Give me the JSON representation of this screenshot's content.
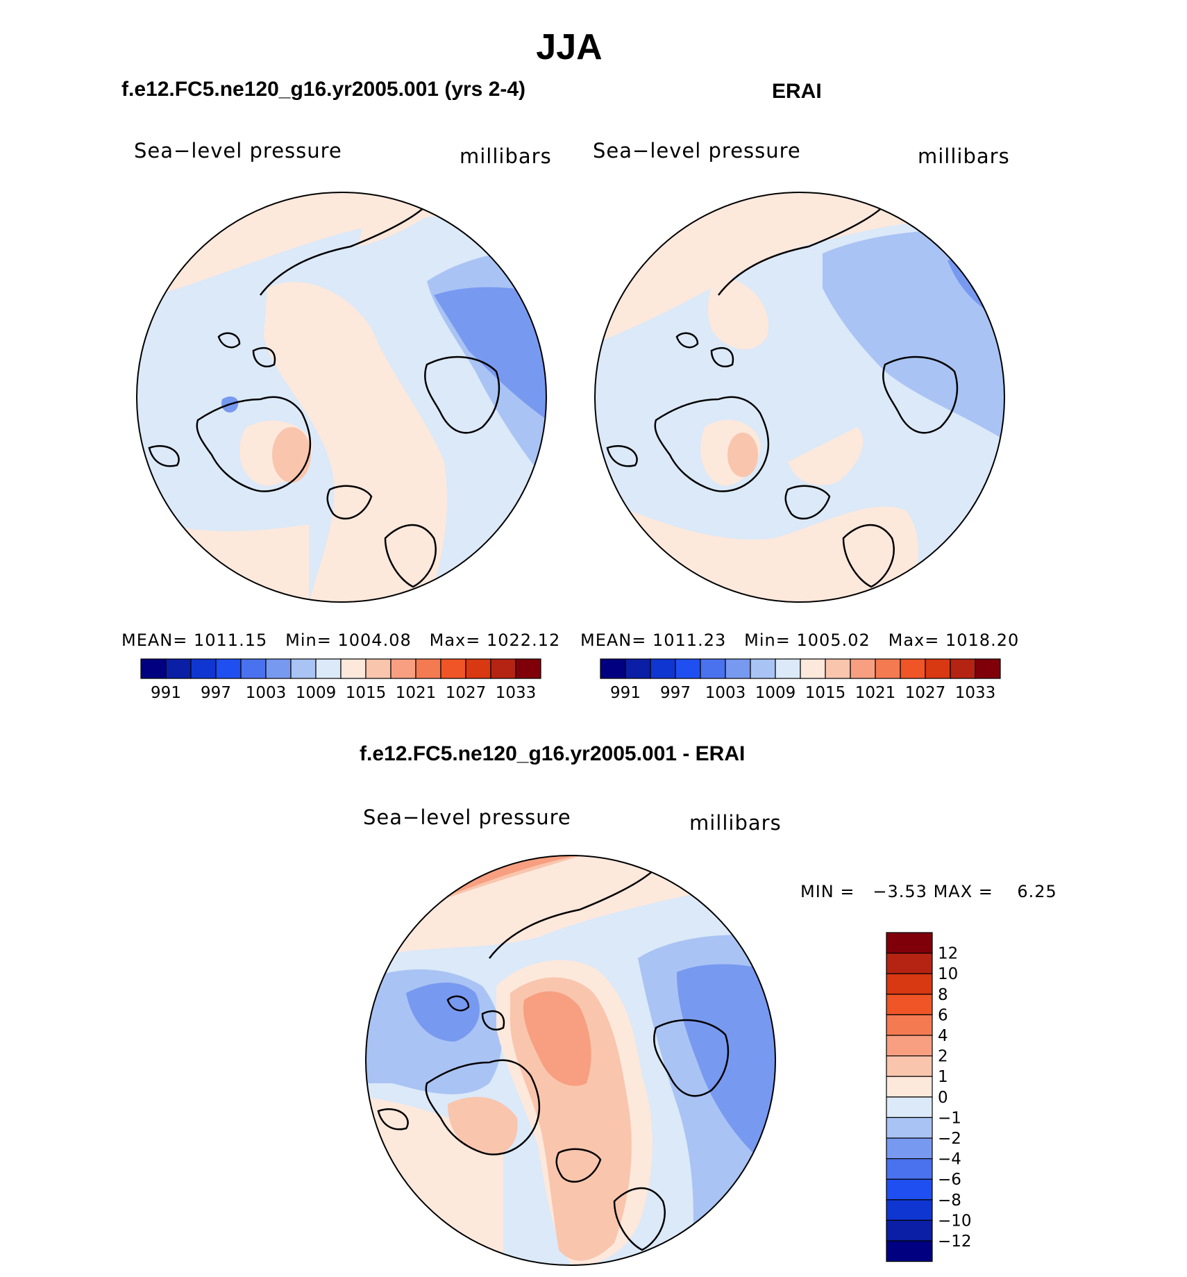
{
  "figure": {
    "title": "JJA",
    "panel1": {
      "case": "f.e12.FC5.ne120_g16.yr2005.001 (yrs 2-4)",
      "variable": "Sea−level pressure",
      "units": "millibars",
      "mean_label": "MEAN=",
      "mean_value": "1011.15",
      "min_label": "Min=",
      "min_value": "1004.08",
      "max_label": "Max=",
      "max_value": "1022.12"
    },
    "panel2": {
      "case": "ERAI",
      "variable": "Sea−level pressure",
      "units": "millibars",
      "mean_label": "MEAN=",
      "mean_value": "1011.23",
      "min_label": "Min=",
      "min_value": "1005.02",
      "max_label": "Max=",
      "max_value": "1018.20"
    },
    "panel3": {
      "case": "f.e12.FC5.ne120_g16.yr2005.001 - ERAI",
      "variable": "Sea−level pressure",
      "units": "millibars",
      "min_label": "MIN =",
      "min_value": "−3.53",
      "max_label": "MAX =",
      "max_value": "6.25"
    }
  },
  "colors": {
    "abs_colorbar": [
      "#000080",
      "#0a1fa6",
      "#1036d2",
      "#1f4ff0",
      "#4a72ee",
      "#7899f0",
      "#a9c3f4",
      "#dbe9f8",
      "#fde8dc",
      "#f9c5ad",
      "#f79f80",
      "#f47a52",
      "#ef5526",
      "#d83812",
      "#b52413",
      "#80000a"
    ],
    "diff_colorbar_bottom_to_top": [
      "#000080",
      "#0a1fa6",
      "#1036d2",
      "#1f4ff0",
      "#4a72ee",
      "#7899f0",
      "#a9c3f4",
      "#dbe9f8",
      "#fde8dc",
      "#f9c5ad",
      "#f79f80",
      "#f47a52",
      "#ef5526",
      "#d83812",
      "#b52413",
      "#80000a"
    ]
  },
  "abs_colorbar_labels": [
    "991",
    "997",
    "1003",
    "1009",
    "1015",
    "1021",
    "1027",
    "1033"
  ],
  "diff_colorbar_labels_top_to_bottom": [
    "12",
    "10",
    "8",
    "6",
    "4",
    "2",
    "1",
    "0",
    "−1",
    "−2",
    "−4",
    "−6",
    "−8",
    "−10",
    "−12"
  ]
}
